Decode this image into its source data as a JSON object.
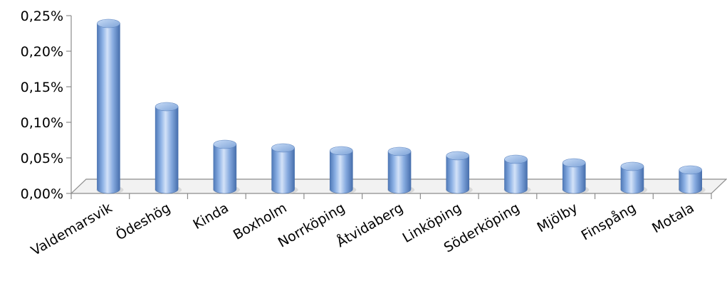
{
  "chart_data": {
    "type": "bar",
    "style": "3d-cylinder",
    "categories": [
      "Valdemarsvik",
      "Ödeshög",
      "Kinda",
      "Boxholm",
      "Norrköping",
      "Åtvidaberg",
      "Linköping",
      "Söderköping",
      "Mjölby",
      "Finspång",
      "Motala"
    ],
    "values": [
      0.233,
      0.116,
      0.063,
      0.058,
      0.054,
      0.053,
      0.047,
      0.042,
      0.037,
      0.032,
      0.027
    ],
    "y_ticks": [
      "0,00%",
      "0,05%",
      "0,10%",
      "0,15%",
      "0,20%",
      "0,25%"
    ],
    "ylim": [
      0,
      0.25
    ],
    "grid": false,
    "legend": "none",
    "colors": {
      "bar": "#7ea6dd",
      "bar_dark": "#4b77b8",
      "bar_light": "#d6e5fb",
      "floor": "#f2f2f2",
      "axis": "#8c8c8c"
    }
  }
}
